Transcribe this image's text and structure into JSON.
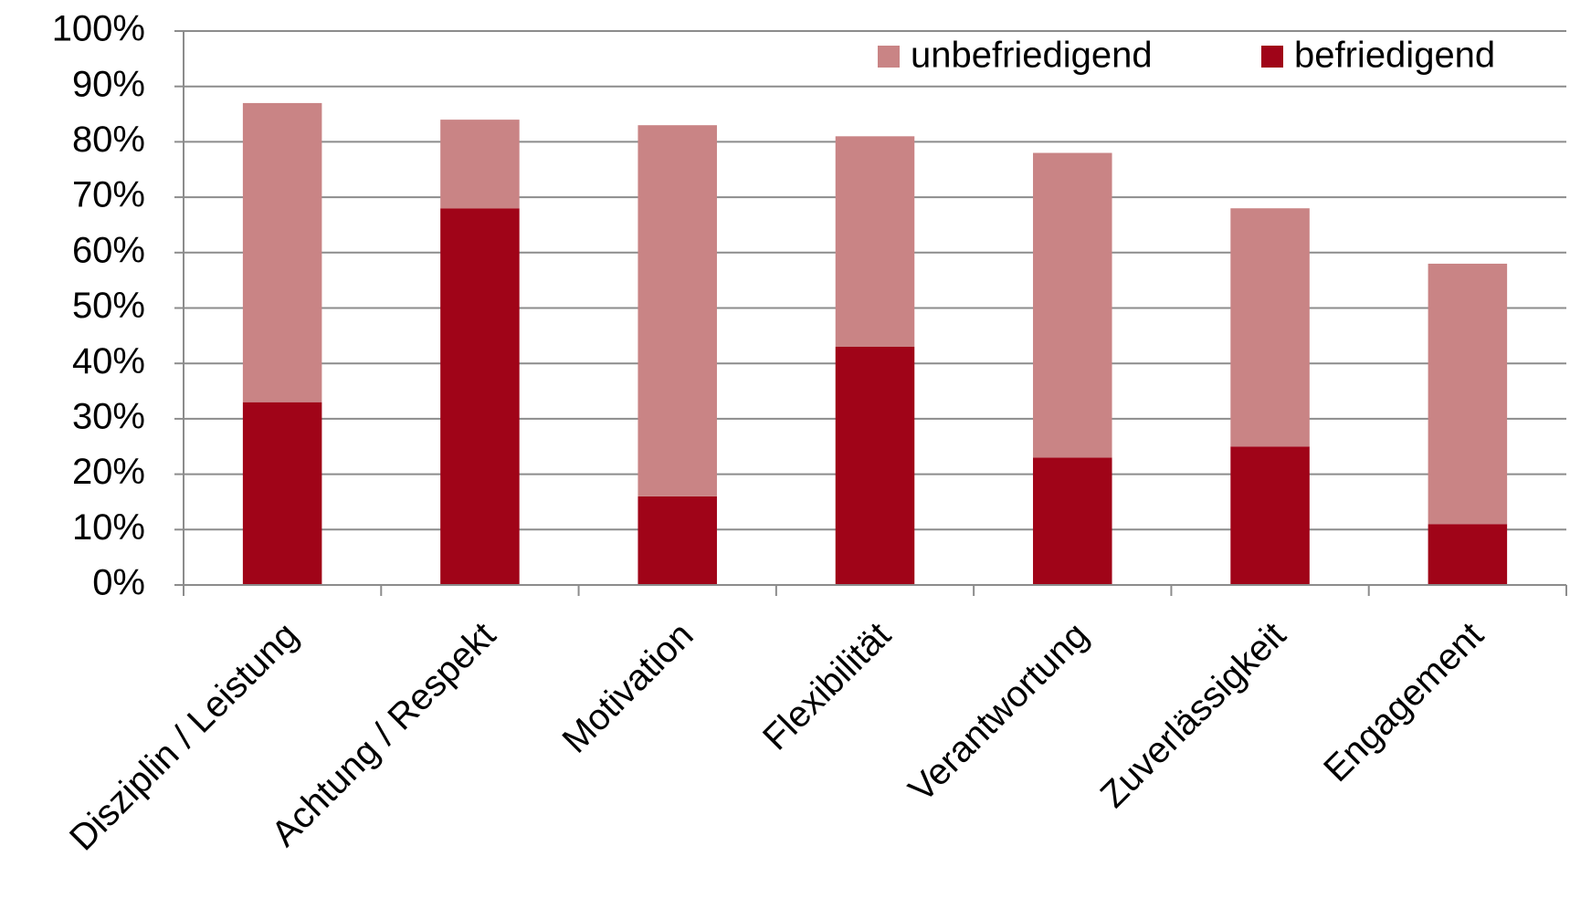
{
  "chart_data": {
    "type": "stacked_bar",
    "categories": [
      "Disziplin / Leistung",
      "Achtung / Respekt",
      "Motivation",
      "Flexibilität",
      "Verantwortung",
      "Zuverlässigkeit",
      "Engagement"
    ],
    "series": [
      {
        "name": "unbefriedigend",
        "color": "#c98485",
        "values": [
          54,
          16,
          67,
          38,
          55,
          43,
          47
        ]
      },
      {
        "name": "befriedigend",
        "color": "#a00418",
        "values": [
          33,
          68,
          16,
          43,
          23,
          25,
          11
        ]
      }
    ],
    "stack_order": [
      "befriedigend",
      "unbefriedigend"
    ],
    "ylim": [
      0,
      100
    ],
    "yticks": [
      {
        "value": 0,
        "label": "0%"
      },
      {
        "value": 10,
        "label": "10%"
      },
      {
        "value": 20,
        "label": "20%"
      },
      {
        "value": 30,
        "label": "30%"
      },
      {
        "value": 40,
        "label": "40%"
      },
      {
        "value": 50,
        "label": "50%"
      },
      {
        "value": 60,
        "label": "60%"
      },
      {
        "value": 70,
        "label": "70%"
      },
      {
        "value": 80,
        "label": "80%"
      },
      {
        "value": 90,
        "label": "90%"
      },
      {
        "value": 100,
        "label": "100%"
      }
    ],
    "grid": true,
    "legend": "top-right"
  }
}
